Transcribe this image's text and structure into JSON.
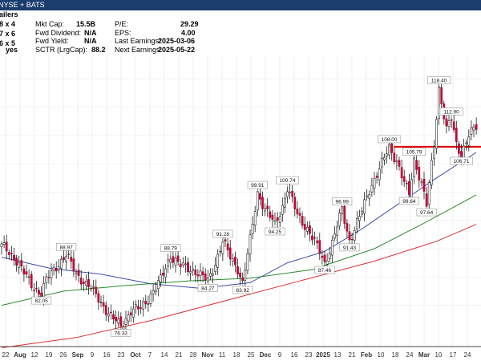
{
  "header": {
    "exchange": "NYSE + BATS"
  },
  "stats": {
    "left_fragments": [
      "ailers",
      "8 x 4",
      "7 x 6",
      "6 x 5",
      "yes"
    ],
    "rows": [
      {
        "label": "Mkt Cap:",
        "value": "15.5B",
        "label2": "P/E:",
        "value2": "29.29"
      },
      {
        "label": "Fwd Dividend:",
        "value": "N/A",
        "label2": "EPS:",
        "value2": "4.00"
      },
      {
        "label": "Fwd Yield:",
        "value": "N/A",
        "label2": "Last Earnings:",
        "value2": "2025-03-06"
      },
      {
        "label": "SCTR (LrgCap):",
        "value": "88.2",
        "label2": "Next Earnings:",
        "value2": "2025-05-22"
      }
    ]
  },
  "chart_data": {
    "type": "candlestick",
    "ylim": [
      73,
      124
    ],
    "x_ticks": [
      "22",
      "Aug",
      "12",
      "19",
      "26",
      "Sep",
      "9",
      "16",
      "23",
      "Oct",
      "7",
      "14",
      "21",
      "28",
      "Nov",
      "11",
      "18",
      "25",
      "Dec",
      "9",
      "16",
      "23",
      "2025",
      "13",
      "21",
      "Feb",
      "10",
      "18",
      "24",
      "Mar",
      "10",
      "17",
      "24"
    ],
    "bold_ticks": [
      "Aug",
      "Sep",
      "Oct",
      "Nov",
      "Dec",
      "2025",
      "Feb",
      "Mar"
    ],
    "price_anchors": [
      {
        "i": 0,
        "v": 90.5
      },
      {
        "i": 6,
        "v": 88.0
      },
      {
        "i": 12,
        "v": 83.5
      },
      {
        "i": 16,
        "v": 82.05
      },
      {
        "i": 18,
        "v": 84.5
      },
      {
        "i": 22,
        "v": 86.8
      },
      {
        "i": 26,
        "v": 88.97
      },
      {
        "i": 30,
        "v": 85.5
      },
      {
        "i": 36,
        "v": 83.0
      },
      {
        "i": 40,
        "v": 80.5
      },
      {
        "i": 44,
        "v": 78.0
      },
      {
        "i": 48,
        "v": 76.33
      },
      {
        "i": 52,
        "v": 79.0
      },
      {
        "i": 56,
        "v": 79.5
      },
      {
        "i": 60,
        "v": 81.8
      },
      {
        "i": 64,
        "v": 84.5
      },
      {
        "i": 68,
        "v": 88.79
      },
      {
        "i": 72,
        "v": 87.0
      },
      {
        "i": 78,
        "v": 86.0
      },
      {
        "i": 83,
        "v": 84.27
      },
      {
        "i": 86,
        "v": 87.5
      },
      {
        "i": 89,
        "v": 91.28
      },
      {
        "i": 92,
        "v": 88.5
      },
      {
        "i": 95,
        "v": 86.5
      },
      {
        "i": 97,
        "v": 83.92
      },
      {
        "i": 100,
        "v": 91.5
      },
      {
        "i": 103,
        "v": 99.91
      },
      {
        "i": 106,
        "v": 97.0
      },
      {
        "i": 110,
        "v": 94.25
      },
      {
        "i": 113,
        "v": 97.5
      },
      {
        "i": 115,
        "v": 100.74
      },
      {
        "i": 119,
        "v": 96.0
      },
      {
        "i": 123,
        "v": 93.5
      },
      {
        "i": 128,
        "v": 89.5
      },
      {
        "i": 130,
        "v": 87.46
      },
      {
        "i": 133,
        "v": 91.0
      },
      {
        "i": 137,
        "v": 96.99
      },
      {
        "i": 140,
        "v": 91.43
      },
      {
        "i": 144,
        "v": 95.5
      },
      {
        "i": 148,
        "v": 100.5
      },
      {
        "i": 152,
        "v": 104.0
      },
      {
        "i": 156,
        "v": 108.0
      },
      {
        "i": 159,
        "v": 105.5
      },
      {
        "i": 162,
        "v": 101.5
      },
      {
        "i": 164,
        "v": 99.64
      },
      {
        "i": 166,
        "v": 105.79
      },
      {
        "i": 169,
        "v": 101.5
      },
      {
        "i": 171,
        "v": 97.64
      },
      {
        "i": 174,
        "v": 108.5
      },
      {
        "i": 176,
        "v": 118.4
      },
      {
        "i": 179,
        "v": 111.0
      },
      {
        "i": 181,
        "v": 112.9
      },
      {
        "i": 183,
        "v": 108.5
      },
      {
        "i": 185,
        "v": 106.71
      },
      {
        "i": 188,
        "v": 110.0
      },
      {
        "i": 191,
        "v": 111.5
      }
    ],
    "moving_averages": [
      {
        "name": "short MA",
        "color": "#3b4ea8",
        "points": [
          [
            0,
            88.5
          ],
          [
            20,
            86.5
          ],
          [
            40,
            85.5
          ],
          [
            60,
            83.8
          ],
          [
            80,
            83.0
          ],
          [
            100,
            84.0
          ],
          [
            115,
            87.5
          ],
          [
            130,
            89.5
          ],
          [
            145,
            93.5
          ],
          [
            160,
            98.0
          ],
          [
            175,
            102.5
          ],
          [
            191,
            107.0
          ]
        ]
      },
      {
        "name": "mid MA",
        "color": "#2e8b2e",
        "points": [
          [
            0,
            80.0
          ],
          [
            25,
            82.5
          ],
          [
            50,
            83.5
          ],
          [
            75,
            84.3
          ],
          [
            100,
            84.8
          ],
          [
            125,
            86.3
          ],
          [
            150,
            90.0
          ],
          [
            170,
            94.5
          ],
          [
            191,
            99.5
          ]
        ]
      },
      {
        "name": "long MA",
        "color": "#d93030",
        "points": [
          [
            0,
            72.5
          ],
          [
            30,
            74.3
          ],
          [
            60,
            77.3
          ],
          [
            90,
            80.8
          ],
          [
            120,
            84.3
          ],
          [
            150,
            87.8
          ],
          [
            175,
            91.3
          ],
          [
            191,
            94.3
          ]
        ]
      }
    ],
    "resistance_line": {
      "value": 108.0,
      "color": "#e00000"
    },
    "annotations": [
      {
        "i": 26,
        "v": 88.97,
        "text": "88.97",
        "pos": "above"
      },
      {
        "i": 16,
        "v": 82.05,
        "text": "82.05",
        "pos": "below"
      },
      {
        "i": 48,
        "v": 76.33,
        "text": "76.33",
        "pos": "below"
      },
      {
        "i": 68,
        "v": 88.79,
        "text": "88.79",
        "pos": "above"
      },
      {
        "i": 83,
        "v": 84.27,
        "text": "84.27",
        "pos": "below"
      },
      {
        "i": 89,
        "v": 91.28,
        "text": "91.28",
        "pos": "above"
      },
      {
        "i": 97,
        "v": 83.92,
        "text": "83.92",
        "pos": "below"
      },
      {
        "i": 103,
        "v": 99.91,
        "text": "99.91",
        "pos": "above"
      },
      {
        "i": 110,
        "v": 94.25,
        "text": "94.25",
        "pos": "below"
      },
      {
        "i": 115,
        "v": 100.74,
        "text": "100.74",
        "pos": "above"
      },
      {
        "i": 130,
        "v": 87.46,
        "text": "87.46",
        "pos": "below"
      },
      {
        "i": 137,
        "v": 96.99,
        "text": "96.99",
        "pos": "above"
      },
      {
        "i": 140,
        "v": 91.43,
        "text": "91.43",
        "pos": "below"
      },
      {
        "i": 156,
        "v": 108.0,
        "text": "108.00",
        "pos": "above"
      },
      {
        "i": 164,
        "v": 99.64,
        "text": "99.64",
        "pos": "below"
      },
      {
        "i": 166,
        "v": 105.79,
        "text": "105.79",
        "pos": "above"
      },
      {
        "i": 171,
        "v": 97.64,
        "text": "97.64",
        "pos": "below"
      },
      {
        "i": 176,
        "v": 118.4,
        "text": "118.40",
        "pos": "above"
      },
      {
        "i": 181,
        "v": 112.9,
        "text": "112.90",
        "pos": "above"
      },
      {
        "i": 185,
        "v": 106.71,
        "text": "106.71",
        "pos": "below"
      }
    ]
  }
}
